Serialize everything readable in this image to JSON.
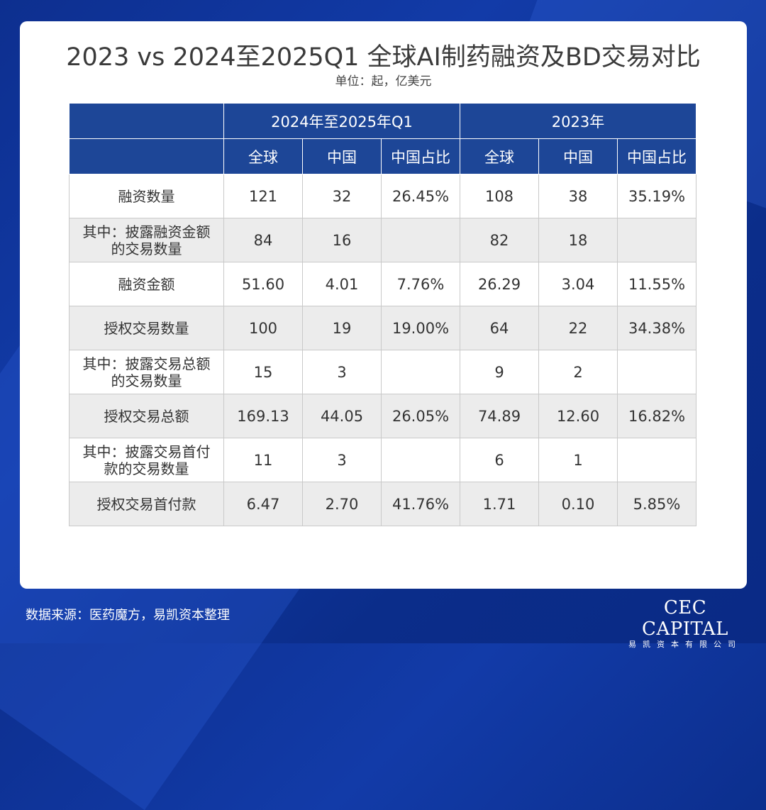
{
  "title": "2023 vs 2024至2025Q1 全球AI制药融资及BD交易对比",
  "subtitle": "单位：起，亿美元",
  "chart_data": {
    "type": "table",
    "column_groups": [
      "2024年至2025年Q1",
      "2023年"
    ],
    "columns": [
      "全球",
      "中国",
      "中国占比",
      "全球",
      "中国",
      "中国占比"
    ],
    "rows": [
      {
        "label": "融资数量",
        "values": [
          "121",
          "32",
          "26.45%",
          "108",
          "38",
          "35.19%"
        ]
      },
      {
        "label": "其中：披露融资金额\n的交易数量",
        "values": [
          "84",
          "16",
          "",
          "82",
          "18",
          ""
        ]
      },
      {
        "label": "融资金额",
        "values": [
          "51.60",
          "4.01",
          "7.76%",
          "26.29",
          "3.04",
          "11.55%"
        ]
      },
      {
        "label": "授权交易数量",
        "values": [
          "100",
          "19",
          "19.00%",
          "64",
          "22",
          "34.38%"
        ]
      },
      {
        "label": "其中：披露交易总额\n的交易数量",
        "values": [
          "15",
          "3",
          "",
          "9",
          "2",
          ""
        ]
      },
      {
        "label": "授权交易总额",
        "values": [
          "169.13",
          "44.05",
          "26.05%",
          "74.89",
          "12.60",
          "16.82%"
        ]
      },
      {
        "label": "其中：披露交易首付\n款的交易数量",
        "values": [
          "11",
          "3",
          "",
          "6",
          "1",
          ""
        ]
      },
      {
        "label": "授权交易首付款",
        "values": [
          "6.47",
          "2.70",
          "41.76%",
          "1.71",
          "0.10",
          "5.85%"
        ]
      }
    ]
  },
  "footer": {
    "source": "数据来源：医药魔方，易凯资本整理",
    "logo_main": "CEC CAPITAL",
    "logo_sub": "易凯资本有限公司"
  },
  "colors": {
    "header_bg": "#1d4697",
    "background": "#0d2f8f",
    "row_alt": "#ececec"
  }
}
